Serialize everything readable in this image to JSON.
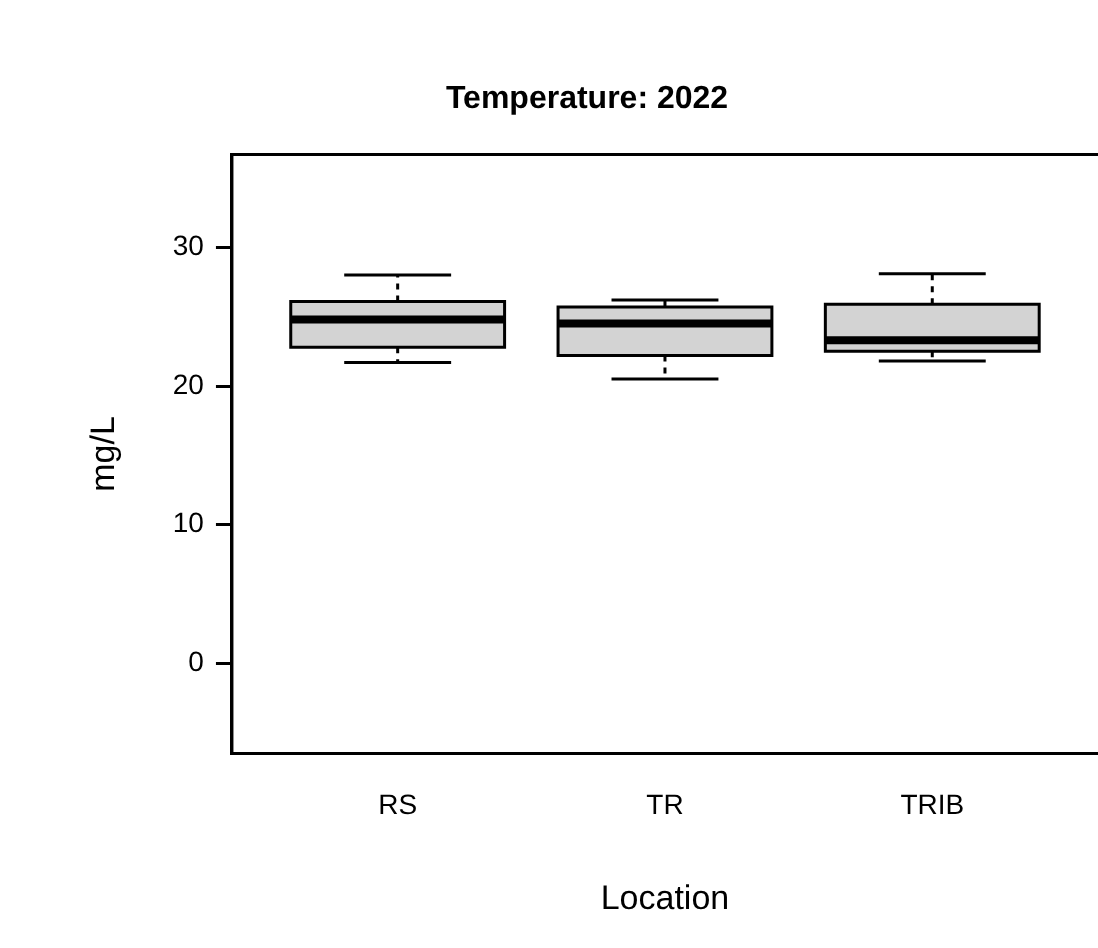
{
  "chart_data": {
    "type": "box",
    "title": "Temperature: 2022",
    "xlabel": "Location",
    "ylabel": "mg/L",
    "categories": [
      "RS",
      "TR",
      "TRIB"
    ],
    "color": "#d3d3d3",
    "boxes": [
      {
        "low": 21.7,
        "q1": 22.8,
        "median": 24.8,
        "q3": 26.1,
        "high": 28.0
      },
      {
        "low": 20.5,
        "q1": 22.2,
        "median": 24.5,
        "q3": 25.7,
        "high": 26.2
      },
      {
        "low": 21.8,
        "q1": 22.5,
        "median": 23.3,
        "q3": 25.9,
        "high": 28.1
      }
    ],
    "ylim": [
      -6.5,
      36.7
    ],
    "yticks": [
      0,
      10,
      20,
      30
    ],
    "grid": false
  }
}
